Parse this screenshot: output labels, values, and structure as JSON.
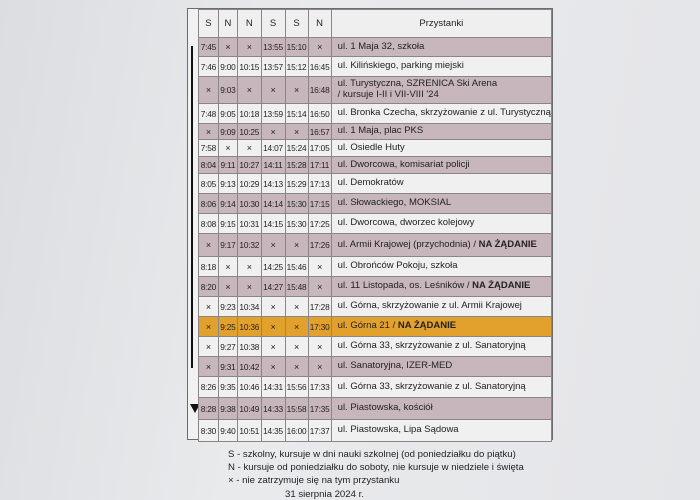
{
  "header": {
    "columns": [
      "S",
      "N",
      "N",
      "S",
      "S",
      "N"
    ],
    "stops_label": "Przystanki"
  },
  "rows": [
    {
      "style": "mauve",
      "times": [
        "7:45",
        "×",
        "×",
        "13:55",
        "15:10",
        "×"
      ],
      "stop": "ul. 1 Maja 32, szkoła",
      "note": ""
    },
    {
      "style": "white",
      "times": [
        "7:46",
        "9:00",
        "10:15",
        "13:57",
        "15:12",
        "16:45"
      ],
      "stop": "ul. Kilińskiego, parking miejski",
      "note": ""
    },
    {
      "style": "mauve",
      "times": [
        "×",
        "9:03",
        "×",
        "×",
        "×",
        "16:48"
      ],
      "stop": "ul. Turystyczna, SZRENICA Ski Arena",
      "note": "/ kursuje I-II i VII-VIII '24"
    },
    {
      "style": "white",
      "times": [
        "7:48",
        "9:05",
        "10:18",
        "13:59",
        "15:14",
        "16:50"
      ],
      "stop": "ul. Bronka Czecha, skrzyżowanie z ul. Turystyczną",
      "note": ""
    },
    {
      "style": "mauve",
      "times": [
        "×",
        "9:09",
        "10:25",
        "×",
        "×",
        "16:57"
      ],
      "stop": "ul. 1 Maja, plac PKS",
      "note": ""
    },
    {
      "style": "white",
      "times": [
        "7:58",
        "×",
        "×",
        "14:07",
        "15:24",
        "17:05"
      ],
      "stop": "ul. Osiedle Huty",
      "note": ""
    },
    {
      "style": "mauve",
      "times": [
        "8:04",
        "9:11",
        "10:27",
        "14:11",
        "15:28",
        "17:11"
      ],
      "stop": "ul. Dworcowa, komisariat policji",
      "note": ""
    },
    {
      "style": "white",
      "times": [
        "8:05",
        "9:13",
        "10:29",
        "14:13",
        "15:29",
        "17:13"
      ],
      "stop": "ul. Demokratów",
      "note": ""
    },
    {
      "style": "mauve",
      "times": [
        "8:06",
        "9:14",
        "10:30",
        "14:14",
        "15:30",
        "17:15"
      ],
      "stop": "ul. Słowackiego, MOKSIAL",
      "note": ""
    },
    {
      "style": "white",
      "times": [
        "8:08",
        "9:15",
        "10:31",
        "14:15",
        "15:30",
        "17:25"
      ],
      "stop": "ul. Dworcowa, dworzec kolejowy",
      "note": ""
    },
    {
      "style": "mauve",
      "times": [
        "×",
        "9:17",
        "10:32",
        "×",
        "×",
        "17:26"
      ],
      "stop": "ul. Armii Krajowej (przychodnia) / ",
      "bold": "NA ŻĄDANIE",
      "note": ""
    },
    {
      "style": "white",
      "times": [
        "8:18",
        "×",
        "×",
        "14:25",
        "15:46",
        "×"
      ],
      "stop": "ul. Obrońców Pokoju, szkoła",
      "note": ""
    },
    {
      "style": "mauve",
      "times": [
        "8:20",
        "×",
        "×",
        "14:27",
        "15:48",
        "×"
      ],
      "stop": "ul. 11 Listopada, os. Leśników / ",
      "bold": "NA ŻĄDANIE",
      "note": ""
    },
    {
      "style": "white",
      "times": [
        "×",
        "9:23",
        "10:34",
        "×",
        "×",
        "17:28"
      ],
      "stop": "ul. Górna, skrzyżowanie z ul. Armii Krajowej",
      "note": ""
    },
    {
      "style": "orange",
      "times": [
        "×",
        "9:25",
        "10:36",
        "×",
        "×",
        "17:30"
      ],
      "stop": "ul. Górna 21 / ",
      "bold": "NA ŻĄDANIE",
      "note": ""
    },
    {
      "style": "white",
      "times": [
        "×",
        "9:27",
        "10:38",
        "×",
        "×",
        "×"
      ],
      "stop": "ul. Górna 33, skrzyżowanie z ul. Sanatoryjną",
      "note": ""
    },
    {
      "style": "mauve",
      "times": [
        "×",
        "9:31",
        "10:42",
        "×",
        "×",
        "×"
      ],
      "stop": "ul. Sanatoryjna, IZER-MED",
      "note": ""
    },
    {
      "style": "white",
      "times": [
        "8:26",
        "9:35",
        "10:46",
        "14:31",
        "15:56",
        "17:33"
      ],
      "stop": "ul. Górna 33, skrzyżowanie z ul. Sanatoryjną",
      "note": ""
    },
    {
      "style": "mauve",
      "times": [
        "8:28",
        "9:38",
        "10:49",
        "14:33",
        "15:58",
        "17:35"
      ],
      "stop": "ul. Piastowska, kościół",
      "note": ""
    },
    {
      "style": "white",
      "times": [
        "8:30",
        "9:40",
        "10:51",
        "14:35",
        "16:00",
        "17:37"
      ],
      "stop": "ul. Piastowska, Lipa Sądowa",
      "note": ""
    }
  ],
  "legend": [
    "S - szkolny, kursuje w dni nauki szkolnej (od poniedziałku do piątku)",
    "N - kursuje od poniedziałku do soboty, nie kursuje w niedziele i święta",
    "× - nie zatrzymuje się na tym przystanku"
  ],
  "footer": "31 sierpnia 2024 r.",
  "colors": {
    "row_mauve": "#c8b6bd",
    "row_white": "#f0f0f1",
    "row_highlight": "#e2a02c"
  }
}
